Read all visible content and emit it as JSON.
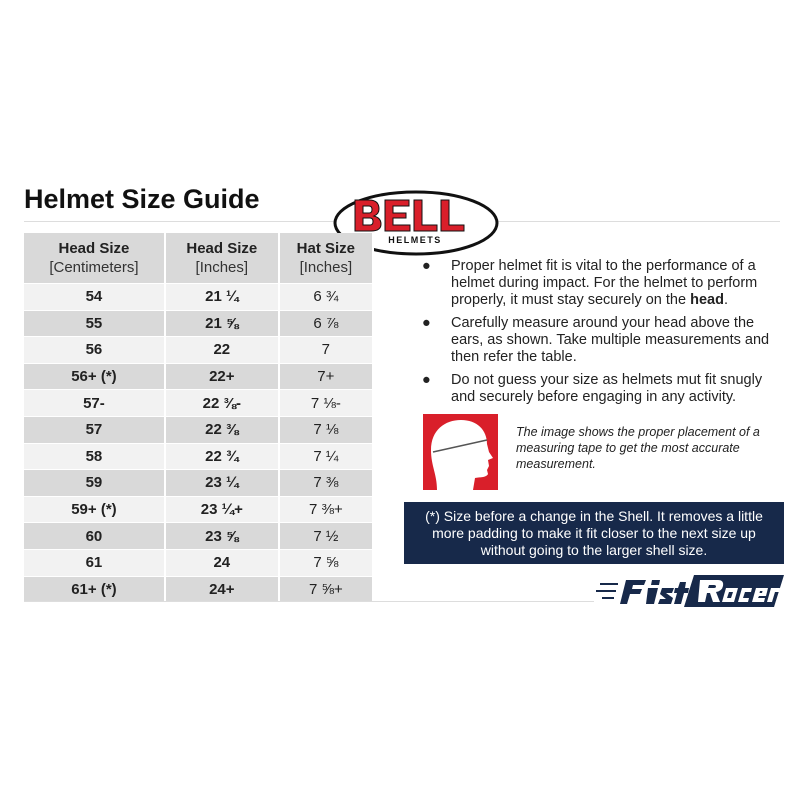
{
  "title": "Helmet Size Guide",
  "brand_logo": "BELL HELMETS",
  "table": {
    "headers": [
      {
        "main": "Head Size",
        "sub": "[Centimeters]"
      },
      {
        "main": "Head Size",
        "sub": "[Inches]"
      },
      {
        "main": "Hat Size",
        "sub": "[Inches]"
      }
    ],
    "rows": [
      [
        "54",
        "21 ¼",
        "6 ¾"
      ],
      [
        "55",
        "21 ⅝",
        "6 ⅞"
      ],
      [
        "56",
        "22",
        "7"
      ],
      [
        "56+ (*)",
        "22+",
        "7+"
      ],
      [
        "57-",
        "22 ⅜-",
        "7 ⅛-"
      ],
      [
        "57",
        "22 ⅜",
        "7 ⅛"
      ],
      [
        "58",
        "22 ¾",
        "7 ¼"
      ],
      [
        "59",
        "23 ¼",
        "7 ⅜"
      ],
      [
        "59+ (*)",
        "23 ¼+",
        "7 ⅜+"
      ],
      [
        "60",
        "23 ⅝",
        "7 ½"
      ],
      [
        "61",
        "24",
        "7 ⅝"
      ],
      [
        "61+ (*)",
        "24+",
        "7 ⅝+"
      ]
    ]
  },
  "bullets": {
    "b1_pre": "Proper helmet fit is vital to the performance of a helmet during impact. For the helmet to perform properly, it must stay securely on the ",
    "b1_bold": "head",
    "b1_post": ".",
    "b2": "Carefully measure around your head above the ears, as shown. Take multiple measurements and then refer the table.",
    "b3": "Do not guess your size as helmets mut fit snugly and securely before engaging in any activity.",
    "dot": "●"
  },
  "caption": "The image shows the proper placement of a measuring tape to get the most accurate measurement.",
  "note": "(*) Size before a change in the Shell. It removes a little more padding to make it fit closer to the next size up without going to the larger shell size.",
  "footer_logo": "FastRacer",
  "colors": {
    "navy": "#17294a",
    "red": "#d91f2a"
  }
}
